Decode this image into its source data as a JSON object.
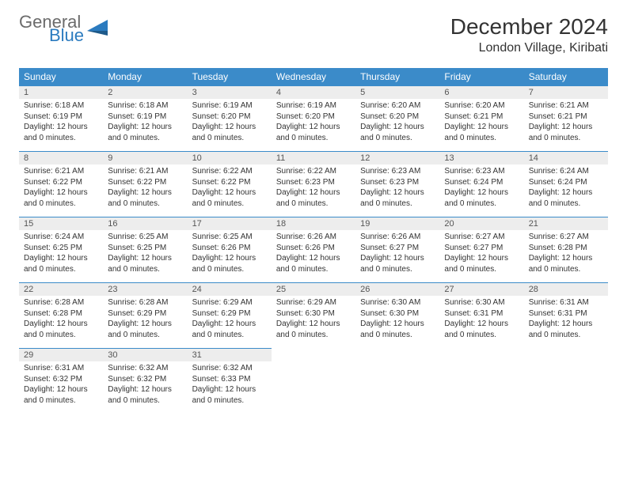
{
  "logo": {
    "text1": "General",
    "text2": "Blue",
    "color_general": "#6b6b6b",
    "color_blue": "#2b7bbf"
  },
  "title": "December 2024",
  "location": "London Village, Kiribati",
  "header_bg": "#3b8bc9",
  "daynum_bg": "#ededed",
  "border_color": "#3b8bc9",
  "day_headers": [
    "Sunday",
    "Monday",
    "Tuesday",
    "Wednesday",
    "Thursday",
    "Friday",
    "Saturday"
  ],
  "weeks": [
    [
      {
        "n": "1",
        "sr": "6:18 AM",
        "ss": "6:19 PM",
        "dl": "12 hours and 0 minutes."
      },
      {
        "n": "2",
        "sr": "6:18 AM",
        "ss": "6:19 PM",
        "dl": "12 hours and 0 minutes."
      },
      {
        "n": "3",
        "sr": "6:19 AM",
        "ss": "6:20 PM",
        "dl": "12 hours and 0 minutes."
      },
      {
        "n": "4",
        "sr": "6:19 AM",
        "ss": "6:20 PM",
        "dl": "12 hours and 0 minutes."
      },
      {
        "n": "5",
        "sr": "6:20 AM",
        "ss": "6:20 PM",
        "dl": "12 hours and 0 minutes."
      },
      {
        "n": "6",
        "sr": "6:20 AM",
        "ss": "6:21 PM",
        "dl": "12 hours and 0 minutes."
      },
      {
        "n": "7",
        "sr": "6:21 AM",
        "ss": "6:21 PM",
        "dl": "12 hours and 0 minutes."
      }
    ],
    [
      {
        "n": "8",
        "sr": "6:21 AM",
        "ss": "6:22 PM",
        "dl": "12 hours and 0 minutes."
      },
      {
        "n": "9",
        "sr": "6:21 AM",
        "ss": "6:22 PM",
        "dl": "12 hours and 0 minutes."
      },
      {
        "n": "10",
        "sr": "6:22 AM",
        "ss": "6:22 PM",
        "dl": "12 hours and 0 minutes."
      },
      {
        "n": "11",
        "sr": "6:22 AM",
        "ss": "6:23 PM",
        "dl": "12 hours and 0 minutes."
      },
      {
        "n": "12",
        "sr": "6:23 AM",
        "ss": "6:23 PM",
        "dl": "12 hours and 0 minutes."
      },
      {
        "n": "13",
        "sr": "6:23 AM",
        "ss": "6:24 PM",
        "dl": "12 hours and 0 minutes."
      },
      {
        "n": "14",
        "sr": "6:24 AM",
        "ss": "6:24 PM",
        "dl": "12 hours and 0 minutes."
      }
    ],
    [
      {
        "n": "15",
        "sr": "6:24 AM",
        "ss": "6:25 PM",
        "dl": "12 hours and 0 minutes."
      },
      {
        "n": "16",
        "sr": "6:25 AM",
        "ss": "6:25 PM",
        "dl": "12 hours and 0 minutes."
      },
      {
        "n": "17",
        "sr": "6:25 AM",
        "ss": "6:26 PM",
        "dl": "12 hours and 0 minutes."
      },
      {
        "n": "18",
        "sr": "6:26 AM",
        "ss": "6:26 PM",
        "dl": "12 hours and 0 minutes."
      },
      {
        "n": "19",
        "sr": "6:26 AM",
        "ss": "6:27 PM",
        "dl": "12 hours and 0 minutes."
      },
      {
        "n": "20",
        "sr": "6:27 AM",
        "ss": "6:27 PM",
        "dl": "12 hours and 0 minutes."
      },
      {
        "n": "21",
        "sr": "6:27 AM",
        "ss": "6:28 PM",
        "dl": "12 hours and 0 minutes."
      }
    ],
    [
      {
        "n": "22",
        "sr": "6:28 AM",
        "ss": "6:28 PM",
        "dl": "12 hours and 0 minutes."
      },
      {
        "n": "23",
        "sr": "6:28 AM",
        "ss": "6:29 PM",
        "dl": "12 hours and 0 minutes."
      },
      {
        "n": "24",
        "sr": "6:29 AM",
        "ss": "6:29 PM",
        "dl": "12 hours and 0 minutes."
      },
      {
        "n": "25",
        "sr": "6:29 AM",
        "ss": "6:30 PM",
        "dl": "12 hours and 0 minutes."
      },
      {
        "n": "26",
        "sr": "6:30 AM",
        "ss": "6:30 PM",
        "dl": "12 hours and 0 minutes."
      },
      {
        "n": "27",
        "sr": "6:30 AM",
        "ss": "6:31 PM",
        "dl": "12 hours and 0 minutes."
      },
      {
        "n": "28",
        "sr": "6:31 AM",
        "ss": "6:31 PM",
        "dl": "12 hours and 0 minutes."
      }
    ],
    [
      {
        "n": "29",
        "sr": "6:31 AM",
        "ss": "6:32 PM",
        "dl": "12 hours and 0 minutes."
      },
      {
        "n": "30",
        "sr": "6:32 AM",
        "ss": "6:32 PM",
        "dl": "12 hours and 0 minutes."
      },
      {
        "n": "31",
        "sr": "6:32 AM",
        "ss": "6:33 PM",
        "dl": "12 hours and 0 minutes."
      },
      null,
      null,
      null,
      null
    ]
  ],
  "labels": {
    "sunrise": "Sunrise: ",
    "sunset": "Sunset: ",
    "daylight": "Daylight: "
  }
}
